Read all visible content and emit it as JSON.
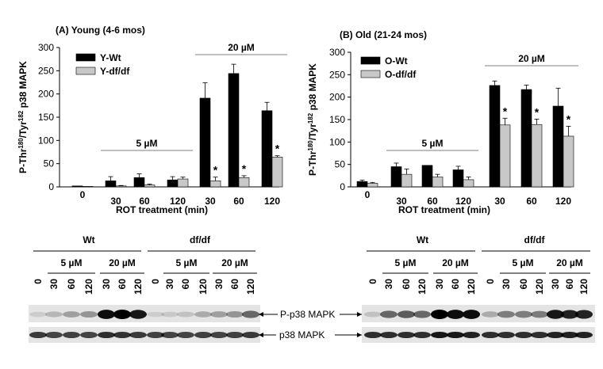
{
  "chart_data": [
    {
      "type": "bar",
      "panel": "(A)",
      "title": "(A)  Young (4-6 mos)",
      "ylabel_parts": [
        "P-Thr",
        "180",
        "/Tyr",
        "182",
        " p38 MAPK"
      ],
      "xlabel": "ROT treatment (min)",
      "ylim": [
        0,
        300
      ],
      "yticks": [
        "0",
        "50",
        "100",
        "150",
        "200",
        "250",
        "300"
      ],
      "categories": [
        "0",
        "30",
        "60",
        "120",
        "30",
        "60",
        "120"
      ],
      "legend": [
        "Y-Wt",
        "Y-df/df"
      ],
      "series": [
        {
          "name": "Y-Wt",
          "color": "#000000",
          "values": [
            2,
            13,
            20,
            15,
            191,
            244,
            164
          ],
          "errors": [
            0,
            9,
            8,
            7,
            33,
            20,
            18
          ]
        },
        {
          "name": "Y-df/df",
          "color": "#c8c8c8",
          "values": [
            1,
            2,
            4,
            17,
            13,
            20,
            64
          ],
          "errors": [
            0,
            1,
            2,
            4,
            8,
            4,
            3
          ]
        }
      ],
      "significance_marks": [
        "",
        "",
        "",
        "",
        "*",
        "*",
        "*"
      ],
      "brackets": [
        {
          "label": "5 µM",
          "from": 1,
          "to": 3
        },
        {
          "label": "20 µM",
          "from": 4,
          "to": 6
        }
      ]
    },
    {
      "type": "bar",
      "panel": "(B)",
      "title": "(B)   Old (21-24 mos)",
      "ylabel_parts": [
        "P-Thr",
        "180",
        "/Tyr",
        "182",
        " p38 MAPK"
      ],
      "xlabel": "ROT treatment (min)",
      "ylim": [
        0,
        300
      ],
      "yticks": [
        "0",
        "50",
        "100",
        "150",
        "200",
        "250",
        "300"
      ],
      "categories": [
        "0",
        "30",
        "60",
        "120",
        "30",
        "60",
        "120"
      ],
      "legend": [
        "O-Wt",
        "O-df/df"
      ],
      "series": [
        {
          "name": "O-Wt",
          "color": "#000000",
          "values": [
            12,
            45,
            48,
            38,
            226,
            217,
            180
          ],
          "errors": [
            3,
            8,
            0,
            8,
            10,
            10,
            40
          ]
        },
        {
          "name": "O-df/df",
          "color": "#c8c8c8",
          "values": [
            8,
            28,
            22,
            16,
            138,
            139,
            113
          ],
          "errors": [
            2,
            12,
            6,
            6,
            15,
            12,
            22
          ]
        }
      ],
      "significance_marks": [
        "",
        "",
        "",
        "",
        "*",
        "*",
        "*"
      ],
      "brackets": [
        {
          "label": "5 µM",
          "from": 1,
          "to": 3
        },
        {
          "label": "20 µM",
          "from": 4,
          "to": 6
        }
      ]
    }
  ],
  "blots": {
    "group_labels": [
      "Wt",
      "df/df"
    ],
    "dose_labels": [
      "5 µM",
      "20 µM"
    ],
    "lane_labels": [
      "0",
      "30",
      "60",
      "120",
      "30",
      "60",
      "120"
    ],
    "band_labels": [
      "P-p38 MAPK",
      "p38 MAPK"
    ],
    "left_intensity": {
      "p_p38": [
        0.1,
        0.2,
        0.3,
        0.35,
        0.95,
        1.0,
        0.9,
        0.1,
        0.12,
        0.15,
        0.25,
        0.3,
        0.35,
        0.55
      ],
      "p38": [
        0.75,
        0.7,
        0.72,
        0.7,
        0.8,
        0.78,
        0.75,
        0.72,
        0.7,
        0.7,
        0.72,
        0.7,
        0.72,
        0.75
      ]
    },
    "right_intensity": {
      "p_p38": [
        0.15,
        0.55,
        0.6,
        0.55,
        1.0,
        0.95,
        0.95,
        0.25,
        0.45,
        0.45,
        0.45,
        0.9,
        0.85,
        0.85
      ],
      "p38": [
        0.8,
        0.8,
        0.8,
        0.8,
        0.9,
        0.9,
        0.85,
        0.8,
        0.8,
        0.8,
        0.8,
        0.85,
        0.85,
        0.85
      ]
    }
  }
}
